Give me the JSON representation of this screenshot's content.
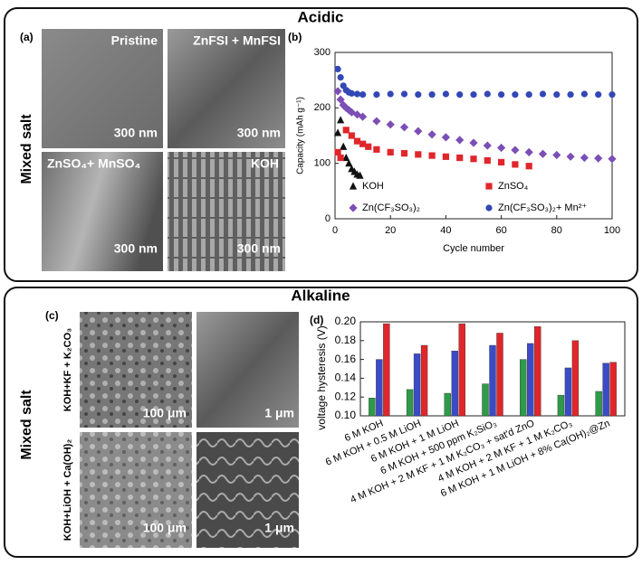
{
  "sections": [
    {
      "title": "Acidic",
      "side_label": "Mixed salt"
    },
    {
      "title": "Alkaline",
      "side_label": "Mixed salt"
    }
  ],
  "panel_a": {
    "label": "(a)",
    "images": [
      {
        "caption": "Pristine",
        "scale": "300 nm"
      },
      {
        "caption": "ZnFSI + MnFSI",
        "scale": "300 nm"
      },
      {
        "caption": "ZnSO₄+ MnSO₄",
        "scale": "300 nm"
      },
      {
        "caption": "KOH",
        "scale": "300 nm"
      }
    ]
  },
  "panel_b": {
    "label": "(b)"
  },
  "panel_c": {
    "label": "(c)",
    "row_labels": [
      "KOH+KF + K₂CO₃",
      "KOH+LiOH + Ca(OH)₂"
    ],
    "images": [
      {
        "scale": "100 μm"
      },
      {
        "scale": "1 μm"
      },
      {
        "scale": "100 μm"
      },
      {
        "scale": "1 μm"
      }
    ]
  },
  "panel_d": {
    "label": "(d)"
  },
  "chart_data": [
    {
      "type": "scatter",
      "x_label": "Cycle number",
      "y_label": "Capacity (mAh g⁻¹)",
      "xlim": [
        0,
        100
      ],
      "xticks": [
        0,
        20,
        40,
        60,
        80,
        100
      ],
      "ylim": [
        0,
        300
      ],
      "yticks": [
        0,
        100,
        200,
        300
      ],
      "legend": "lower center",
      "series": [
        {
          "name": "KOH",
          "color": "#111111",
          "marker": "triangle",
          "x": [
            1,
            2,
            3,
            4,
            5,
            6,
            7,
            8,
            9
          ],
          "values": [
            155,
            178,
            130,
            110,
            100,
            90,
            85,
            80,
            78
          ]
        },
        {
          "name": "ZnSO₄",
          "color": "#e0262b",
          "marker": "square",
          "x": [
            1,
            2,
            4,
            6,
            8,
            10,
            12,
            15,
            20,
            25,
            30,
            35,
            40,
            45,
            50,
            55,
            60,
            65,
            70
          ],
          "values": [
            120,
            110,
            160,
            150,
            140,
            135,
            130,
            125,
            120,
            118,
            116,
            114,
            112,
            110,
            108,
            105,
            102,
            98,
            95
          ]
        },
        {
          "name": "Zn(CF₃SO₃)₂",
          "color": "#7b4fb5",
          "marker": "diamond",
          "x": [
            1,
            2,
            3,
            4,
            5,
            6,
            8,
            10,
            15,
            20,
            25,
            30,
            35,
            40,
            45,
            50,
            55,
            60,
            65,
            70,
            75,
            80,
            85,
            90,
            95,
            100
          ],
          "values": [
            230,
            215,
            205,
            200,
            196,
            192,
            188,
            184,
            176,
            170,
            165,
            158,
            152,
            147,
            142,
            137,
            132,
            128,
            124,
            120,
            117,
            115,
            112,
            110,
            109,
            108
          ]
        },
        {
          "name": "Zn(CF₃SO₃)₂+ Mn²⁺",
          "color": "#3348b5",
          "marker": "circle",
          "x": [
            1,
            2,
            3,
            4,
            5,
            6,
            8,
            10,
            15,
            20,
            25,
            30,
            35,
            40,
            45,
            50,
            55,
            60,
            65,
            70,
            75,
            80,
            85,
            90,
            95,
            100
          ],
          "values": [
            270,
            255,
            240,
            232,
            228,
            226,
            225,
            224,
            224,
            225,
            225,
            224,
            224,
            225,
            224,
            224,
            225,
            224,
            224,
            224,
            225,
            224,
            224,
            225,
            224,
            224
          ]
        }
      ]
    },
    {
      "type": "bar",
      "y_label": "voltage hysteresis (V)",
      "ylim": [
        0.1,
        0.2
      ],
      "yticks": [
        {
          "value": 0.1,
          "label": "0.10"
        },
        0.12,
        0.14,
        0.16,
        0.18,
        {
          "value": 0.2,
          "label": "0.20"
        }
      ],
      "categories": [
        "6 M KOH",
        "6 M KOH + 0.5 M LiOH",
        "6 M KOH + 1 M LiOH",
        "6 M KOH + 500 ppm K₂SiO₃",
        "4 M KOH + 2 M KF + 1 M K₂CO₃ + sat'd ZnO",
        "4 M KOH + 2 M KF + 1 M K₂CO₃",
        "6 M KOH + 1 M LiOH + 8% Ca(OH)₂@Zn"
      ],
      "series": [
        {
          "color": "#2e9a4a",
          "values": [
            0.119,
            0.128,
            0.124,
            0.134,
            0.16,
            0.122,
            0.126
          ]
        },
        {
          "color": "#3b4bc8",
          "values": [
            0.16,
            0.166,
            0.169,
            0.175,
            0.177,
            0.151,
            0.156
          ]
        },
        {
          "color": "#e0262b",
          "values": [
            0.198,
            0.175,
            0.198,
            0.188,
            0.195,
            0.18,
            0.157
          ]
        }
      ]
    }
  ]
}
